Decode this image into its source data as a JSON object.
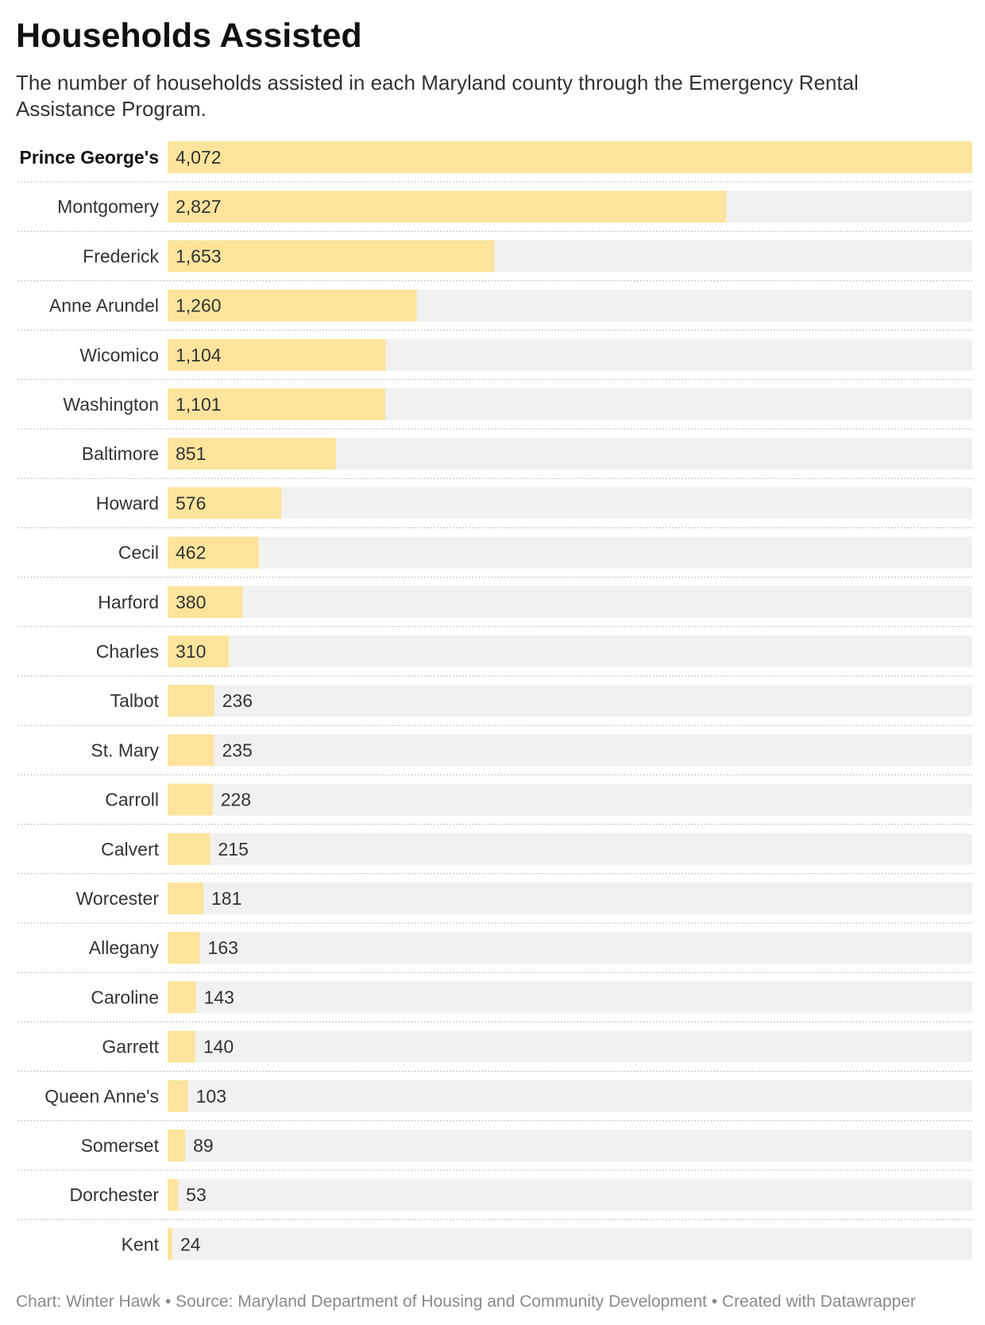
{
  "header": {
    "title": "Households Assisted",
    "subtitle": "The number of households assisted in each Maryland county through the Emergency Rental Assistance Program."
  },
  "footer": {
    "credit": "Chart: Winter Hawk • Source: Maryland Department of Housing and Community Development • Created with Datawrapper"
  },
  "colors": {
    "bar": "#fde49d",
    "track": "#f1f1f1",
    "divider": "#bdbdbd"
  },
  "chart_data": {
    "type": "bar",
    "orientation": "horizontal",
    "title": "Households Assisted",
    "subtitle": "The number of households assisted in each Maryland county through the Emergency Rental Assistance Program.",
    "categories": [
      "Prince George's",
      "Montgomery",
      "Frederick",
      "Anne Arundel",
      "Wicomico",
      "Washington",
      "Baltimore",
      "Howard",
      "Cecil",
      "Harford",
      "Charles",
      "Talbot",
      "St. Mary",
      "Carroll",
      "Calvert",
      "Worcester",
      "Allegany",
      "Caroline",
      "Garrett",
      "Queen Anne's",
      "Somerset",
      "Dorchester",
      "Kent"
    ],
    "values": [
      4072,
      2827,
      1653,
      1260,
      1104,
      1101,
      851,
      576,
      462,
      380,
      310,
      236,
      235,
      228,
      215,
      181,
      163,
      143,
      140,
      103,
      89,
      53,
      24
    ],
    "value_labels": [
      "4,072",
      "2,827",
      "1,653",
      "1,260",
      "1,104",
      "1,101",
      "851",
      "576",
      "462",
      "380",
      "310",
      "236",
      "235",
      "228",
      "215",
      "181",
      "163",
      "143",
      "140",
      "103",
      "89",
      "53",
      "24"
    ],
    "highlighted": [
      "Prince George's"
    ],
    "xlim": [
      0,
      4072
    ],
    "grid": false,
    "legend": "none"
  }
}
